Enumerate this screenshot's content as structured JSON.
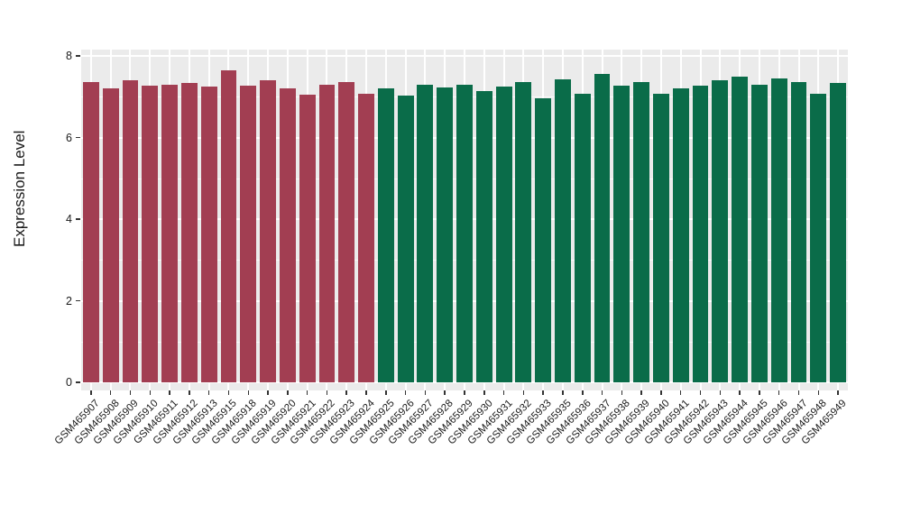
{
  "chart_data": {
    "type": "bar",
    "title": "",
    "xlabel": "",
    "ylabel": "Expression Level",
    "ylim": [
      0,
      8
    ],
    "yticks": [
      0,
      2,
      4,
      6,
      8
    ],
    "yticks_minor": [
      1,
      3,
      5,
      7
    ],
    "grid": "white major horizontal + vertical gridlines on gray panel (ggplot style)",
    "legend_position": "none",
    "panel_background": "#EBEBEB",
    "gridline_color": "#FFFFFF",
    "categories": [
      "GSM465907",
      "GSM465908",
      "GSM465909",
      "GSM465910",
      "GSM465911",
      "GSM465912",
      "GSM465913",
      "GSM465915",
      "GSM465918",
      "GSM465919",
      "GSM465920",
      "GSM465921",
      "GSM465922",
      "GSM465923",
      "GSM465924",
      "GSM465925",
      "GSM465926",
      "GSM465927",
      "GSM465928",
      "GSM465929",
      "GSM465930",
      "GSM465931",
      "GSM465932",
      "GSM465933",
      "GSM465935",
      "GSM465936",
      "GSM465937",
      "GSM465938",
      "GSM465939",
      "GSM465940",
      "GSM465941",
      "GSM465942",
      "GSM465943",
      "GSM465944",
      "GSM465945",
      "GSM465946",
      "GSM465947",
      "GSM465948",
      "GSM465949"
    ],
    "values": [
      7.35,
      7.2,
      7.4,
      7.28,
      7.3,
      7.33,
      7.24,
      7.65,
      7.27,
      7.4,
      7.2,
      7.05,
      7.3,
      7.35,
      7.08,
      7.2,
      7.02,
      7.3,
      7.22,
      7.3,
      7.13,
      7.25,
      7.35,
      6.97,
      7.42,
      7.08,
      7.55,
      7.28,
      7.35,
      7.08,
      7.2,
      7.28,
      7.4,
      7.5,
      7.3,
      7.45,
      7.35,
      7.08,
      7.33
    ],
    "bar_group": [
      "red",
      "red",
      "red",
      "red",
      "red",
      "red",
      "red",
      "red",
      "red",
      "red",
      "red",
      "red",
      "red",
      "red",
      "red",
      "green",
      "green",
      "green",
      "green",
      "green",
      "green",
      "green",
      "green",
      "green",
      "green",
      "green",
      "green",
      "green",
      "green",
      "green",
      "green",
      "green",
      "green",
      "green",
      "green",
      "green",
      "green",
      "green",
      "green"
    ],
    "group_colors": {
      "red": "#A23E52",
      "green": "#0A6C49"
    }
  }
}
